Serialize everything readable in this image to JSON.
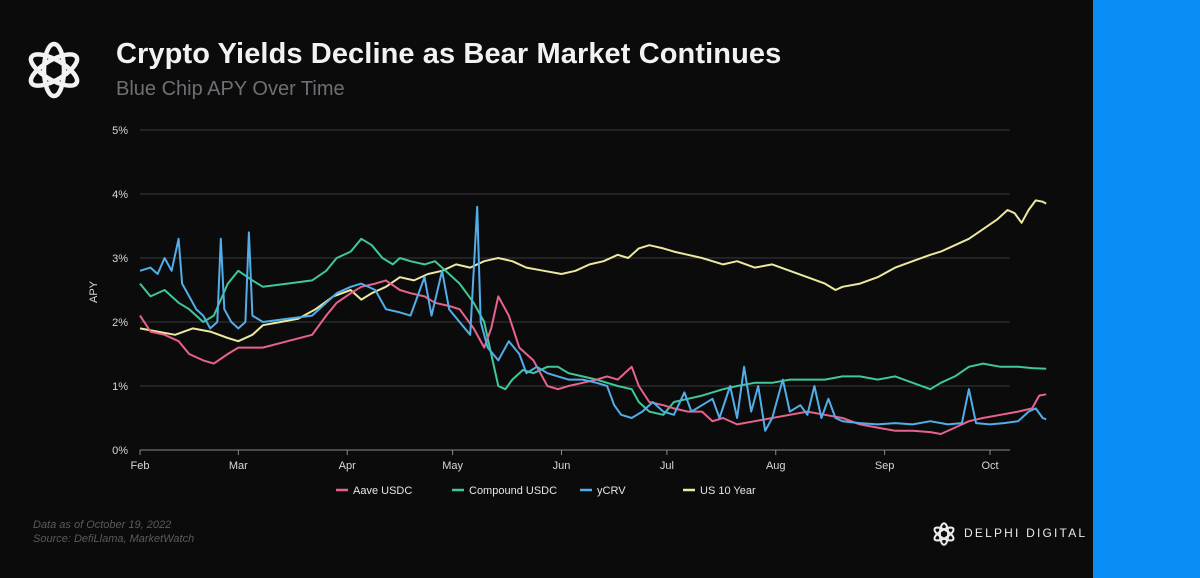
{
  "header": {
    "title": "Crypto Yields Decline as Bear Market Continues",
    "subtitle": "Blue Chip APY Over Time"
  },
  "footer": {
    "note_line1": "Data as of October 19, 2022",
    "note_line2": "Source: DefiLlama, MarketWatch",
    "brand": "DELPHI DIGITAL"
  },
  "colors": {
    "aave": "#e8628d",
    "compound": "#3fc996",
    "ycrv": "#52aee8",
    "us10": "#ede8a0",
    "accent": "#0a8ef5"
  },
  "chart_data": {
    "type": "line",
    "title": "Crypto Yields Decline as Bear Market Continues",
    "subtitle": "Blue Chip APY Over Time",
    "xlabel": "",
    "ylabel": "APY",
    "ylim": [
      0,
      5
    ],
    "yticks": [
      "0%",
      "1%",
      "2%",
      "3%",
      "4%",
      "5%"
    ],
    "xticks": [
      "Feb",
      "Mar",
      "Apr",
      "May",
      "Jun",
      "Jul",
      "Aug",
      "Sep",
      "Oct"
    ],
    "x_start": "Feb",
    "grid": "horizontal",
    "legend": "bottom",
    "series": [
      {
        "name": "Aave USDC",
        "color": "#e8628d",
        "points": [
          [
            0,
            2.1
          ],
          [
            3,
            1.85
          ],
          [
            7,
            1.8
          ],
          [
            11,
            1.7
          ],
          [
            14,
            1.5
          ],
          [
            18,
            1.4
          ],
          [
            21,
            1.35
          ],
          [
            25,
            1.5
          ],
          [
            28,
            1.6
          ],
          [
            35,
            1.6
          ],
          [
            42,
            1.7
          ],
          [
            49,
            1.8
          ],
          [
            53,
            2.1
          ],
          [
            56,
            2.3
          ],
          [
            60,
            2.45
          ],
          [
            63,
            2.55
          ],
          [
            67,
            2.6
          ],
          [
            70,
            2.65
          ],
          [
            74,
            2.5
          ],
          [
            77,
            2.45
          ],
          [
            81,
            2.4
          ],
          [
            84,
            2.3
          ],
          [
            88,
            2.25
          ],
          [
            91,
            2.2
          ],
          [
            95,
            1.9
          ],
          [
            98,
            1.6
          ],
          [
            100,
            1.9
          ],
          [
            102,
            2.4
          ],
          [
            105,
            2.1
          ],
          [
            108,
            1.6
          ],
          [
            112,
            1.4
          ],
          [
            116,
            1.0
          ],
          [
            119,
            0.95
          ],
          [
            122,
            1.0
          ],
          [
            126,
            1.05
          ],
          [
            130,
            1.1
          ],
          [
            133,
            1.15
          ],
          [
            136,
            1.1
          ],
          [
            140,
            1.3
          ],
          [
            142,
            1.0
          ],
          [
            145,
            0.75
          ],
          [
            149,
            0.7
          ],
          [
            152,
            0.65
          ],
          [
            156,
            0.6
          ],
          [
            160,
            0.6
          ],
          [
            163,
            0.45
          ],
          [
            166,
            0.5
          ],
          [
            170,
            0.4
          ],
          [
            175,
            0.45
          ],
          [
            180,
            0.5
          ],
          [
            185,
            0.55
          ],
          [
            190,
            0.6
          ],
          [
            195,
            0.55
          ],
          [
            200,
            0.5
          ],
          [
            205,
            0.4
          ],
          [
            210,
            0.35
          ],
          [
            215,
            0.3
          ],
          [
            220,
            0.3
          ],
          [
            225,
            0.28
          ],
          [
            228,
            0.25
          ],
          [
            232,
            0.35
          ],
          [
            236,
            0.45
          ],
          [
            240,
            0.5
          ],
          [
            245,
            0.55
          ],
          [
            250,
            0.6
          ],
          [
            254,
            0.65
          ],
          [
            256,
            0.85
          ],
          [
            258,
            0.87
          ]
        ]
      },
      {
        "name": "Compound USDC",
        "color": "#3fc996",
        "points": [
          [
            0,
            2.6
          ],
          [
            3,
            2.4
          ],
          [
            7,
            2.5
          ],
          [
            11,
            2.3
          ],
          [
            14,
            2.2
          ],
          [
            18,
            2.0
          ],
          [
            21,
            2.1
          ],
          [
            25,
            2.6
          ],
          [
            28,
            2.8
          ],
          [
            32,
            2.65
          ],
          [
            35,
            2.55
          ],
          [
            42,
            2.6
          ],
          [
            49,
            2.65
          ],
          [
            53,
            2.8
          ],
          [
            56,
            3.0
          ],
          [
            60,
            3.1
          ],
          [
            63,
            3.3
          ],
          [
            66,
            3.2
          ],
          [
            69,
            3.0
          ],
          [
            72,
            2.9
          ],
          [
            74,
            3.0
          ],
          [
            77,
            2.95
          ],
          [
            81,
            2.9
          ],
          [
            84,
            2.95
          ],
          [
            88,
            2.75
          ],
          [
            91,
            2.6
          ],
          [
            95,
            2.3
          ],
          [
            98,
            2.0
          ],
          [
            100,
            1.5
          ],
          [
            102,
            1.0
          ],
          [
            104,
            0.95
          ],
          [
            106,
            1.1
          ],
          [
            109,
            1.25
          ],
          [
            112,
            1.2
          ],
          [
            116,
            1.3
          ],
          [
            119,
            1.3
          ],
          [
            122,
            1.2
          ],
          [
            126,
            1.15
          ],
          [
            130,
            1.1
          ],
          [
            133,
            1.05
          ],
          [
            136,
            1.0
          ],
          [
            140,
            0.95
          ],
          [
            142,
            0.75
          ],
          [
            145,
            0.6
          ],
          [
            149,
            0.55
          ],
          [
            152,
            0.75
          ],
          [
            156,
            0.8
          ],
          [
            160,
            0.85
          ],
          [
            163,
            0.9
          ],
          [
            166,
            0.95
          ],
          [
            170,
            1.0
          ],
          [
            175,
            1.05
          ],
          [
            180,
            1.05
          ],
          [
            185,
            1.1
          ],
          [
            190,
            1.1
          ],
          [
            195,
            1.1
          ],
          [
            200,
            1.15
          ],
          [
            205,
            1.15
          ],
          [
            210,
            1.1
          ],
          [
            215,
            1.15
          ],
          [
            220,
            1.05
          ],
          [
            225,
            0.95
          ],
          [
            228,
            1.05
          ],
          [
            232,
            1.15
          ],
          [
            236,
            1.3
          ],
          [
            240,
            1.35
          ],
          [
            245,
            1.3
          ],
          [
            250,
            1.3
          ],
          [
            254,
            1.28
          ],
          [
            258,
            1.27
          ]
        ]
      },
      {
        "name": "yCRV",
        "color": "#52aee8",
        "points": [
          [
            0,
            2.8
          ],
          [
            3,
            2.85
          ],
          [
            5,
            2.75
          ],
          [
            7,
            3.0
          ],
          [
            9,
            2.8
          ],
          [
            11,
            3.3
          ],
          [
            12,
            2.6
          ],
          [
            14,
            2.4
          ],
          [
            16,
            2.2
          ],
          [
            18,
            2.1
          ],
          [
            20,
            1.9
          ],
          [
            22,
            2.0
          ],
          [
            23,
            3.3
          ],
          [
            24,
            2.2
          ],
          [
            26,
            2.0
          ],
          [
            28,
            1.9
          ],
          [
            30,
            2.0
          ],
          [
            31,
            3.4
          ],
          [
            32,
            2.1
          ],
          [
            35,
            2.0
          ],
          [
            42,
            2.05
          ],
          [
            49,
            2.1
          ],
          [
            53,
            2.3
          ],
          [
            56,
            2.45
          ],
          [
            60,
            2.55
          ],
          [
            63,
            2.6
          ],
          [
            67,
            2.5
          ],
          [
            70,
            2.2
          ],
          [
            74,
            2.15
          ],
          [
            77,
            2.1
          ],
          [
            81,
            2.7
          ],
          [
            83,
            2.1
          ],
          [
            86,
            2.8
          ],
          [
            88,
            2.2
          ],
          [
            91,
            2.0
          ],
          [
            94,
            1.8
          ],
          [
            96,
            3.8
          ],
          [
            97,
            2.0
          ],
          [
            99,
            1.6
          ],
          [
            102,
            1.4
          ],
          [
            105,
            1.7
          ],
          [
            108,
            1.5
          ],
          [
            110,
            1.2
          ],
          [
            113,
            1.3
          ],
          [
            116,
            1.2
          ],
          [
            119,
            1.15
          ],
          [
            122,
            1.1
          ],
          [
            126,
            1.1
          ],
          [
            130,
            1.05
          ],
          [
            133,
            1.0
          ],
          [
            135,
            0.7
          ],
          [
            137,
            0.55
          ],
          [
            140,
            0.5
          ],
          [
            143,
            0.6
          ],
          [
            146,
            0.75
          ],
          [
            149,
            0.6
          ],
          [
            152,
            0.55
          ],
          [
            155,
            0.9
          ],
          [
            157,
            0.6
          ],
          [
            160,
            0.7
          ],
          [
            163,
            0.8
          ],
          [
            165,
            0.5
          ],
          [
            168,
            1.0
          ],
          [
            170,
            0.5
          ],
          [
            172,
            1.3
          ],
          [
            174,
            0.6
          ],
          [
            176,
            1.0
          ],
          [
            178,
            0.3
          ],
          [
            180,
            0.5
          ],
          [
            183,
            1.1
          ],
          [
            185,
            0.6
          ],
          [
            188,
            0.7
          ],
          [
            190,
            0.55
          ],
          [
            192,
            1.0
          ],
          [
            194,
            0.5
          ],
          [
            196,
            0.8
          ],
          [
            198,
            0.5
          ],
          [
            200,
            0.45
          ],
          [
            205,
            0.42
          ],
          [
            210,
            0.4
          ],
          [
            215,
            0.42
          ],
          [
            220,
            0.4
          ],
          [
            225,
            0.45
          ],
          [
            230,
            0.4
          ],
          [
            234,
            0.42
          ],
          [
            236,
            0.95
          ],
          [
            238,
            0.42
          ],
          [
            242,
            0.4
          ],
          [
            246,
            0.42
          ],
          [
            250,
            0.45
          ],
          [
            253,
            0.6
          ],
          [
            255,
            0.65
          ],
          [
            257,
            0.5
          ],
          [
            258,
            0.48
          ]
        ]
      },
      {
        "name": "US 10 Year",
        "color": "#ede8a0",
        "points": [
          [
            0,
            1.9
          ],
          [
            5,
            1.85
          ],
          [
            10,
            1.8
          ],
          [
            15,
            1.9
          ],
          [
            20,
            1.85
          ],
          [
            25,
            1.75
          ],
          [
            28,
            1.7
          ],
          [
            32,
            1.8
          ],
          [
            35,
            1.95
          ],
          [
            40,
            2.0
          ],
          [
            45,
            2.05
          ],
          [
            50,
            2.2
          ],
          [
            55,
            2.4
          ],
          [
            60,
            2.5
          ],
          [
            63,
            2.35
          ],
          [
            66,
            2.45
          ],
          [
            70,
            2.55
          ],
          [
            74,
            2.7
          ],
          [
            78,
            2.65
          ],
          [
            82,
            2.75
          ],
          [
            86,
            2.8
          ],
          [
            90,
            2.9
          ],
          [
            94,
            2.85
          ],
          [
            98,
            2.95
          ],
          [
            102,
            3.0
          ],
          [
            106,
            2.95
          ],
          [
            110,
            2.85
          ],
          [
            115,
            2.8
          ],
          [
            120,
            2.75
          ],
          [
            124,
            2.8
          ],
          [
            128,
            2.9
          ],
          [
            132,
            2.95
          ],
          [
            136,
            3.05
          ],
          [
            139,
            3.0
          ],
          [
            142,
            3.15
          ],
          [
            145,
            3.2
          ],
          [
            149,
            3.15
          ],
          [
            152,
            3.1
          ],
          [
            156,
            3.05
          ],
          [
            160,
            3.0
          ],
          [
            163,
            2.95
          ],
          [
            166,
            2.9
          ],
          [
            170,
            2.95
          ],
          [
            175,
            2.85
          ],
          [
            180,
            2.9
          ],
          [
            185,
            2.8
          ],
          [
            190,
            2.7
          ],
          [
            195,
            2.6
          ],
          [
            198,
            2.5
          ],
          [
            200,
            2.55
          ],
          [
            205,
            2.6
          ],
          [
            210,
            2.7
          ],
          [
            215,
            2.85
          ],
          [
            220,
            2.95
          ],
          [
            225,
            3.05
          ],
          [
            228,
            3.1
          ],
          [
            232,
            3.2
          ],
          [
            236,
            3.3
          ],
          [
            240,
            3.45
          ],
          [
            244,
            3.6
          ],
          [
            247,
            3.75
          ],
          [
            249,
            3.7
          ],
          [
            251,
            3.55
          ],
          [
            253,
            3.75
          ],
          [
            255,
            3.9
          ],
          [
            257,
            3.88
          ],
          [
            258,
            3.85
          ]
        ]
      }
    ]
  }
}
